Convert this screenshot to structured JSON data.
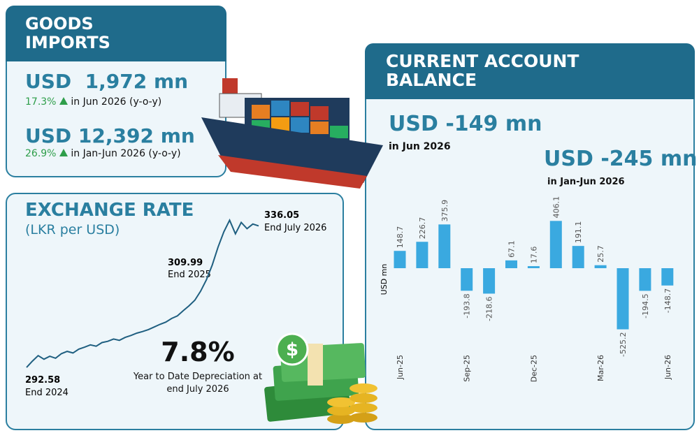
{
  "goods_imports": {
    "title": "GOODS IMPORTS",
    "monthly": {
      "amount": "USD  1,972 mn",
      "change": "17.3%",
      "period": "in Jun 2026 (y-o-y)"
    },
    "cumulative": {
      "amount": "USD 12,392 mn",
      "change": "26.9%",
      "period": "in Jan-Jun 2026 (y-o-y)"
    }
  },
  "exchange_rate": {
    "title": "EXCHANGE RATE",
    "subtitle": "(LKR per USD)",
    "depreciation": "7.8%",
    "depreciation_label": "Year to Date Depreciation at end July 2026"
  },
  "current_account": {
    "title": "CURRENT ACCOUNT BALANCE",
    "monthly": {
      "amount": "USD -149 mn",
      "period": "in Jun 2026"
    },
    "cumulative": {
      "amount": "USD -245 mn",
      "period": "in Jan-Jun 2026"
    }
  },
  "chart_data": [
    {
      "type": "line",
      "color": "#1f5f80",
      "values": [
        292.58,
        294.5,
        296.2,
        295.1,
        296.0,
        295.4,
        296.8,
        297.5,
        297.0,
        298.2,
        298.8,
        299.5,
        299.1,
        300.2,
        300.6,
        301.3,
        300.9,
        301.8,
        302.4,
        303.1,
        303.6,
        304.2,
        305.0,
        305.8,
        306.5,
        307.6,
        308.4,
        309.99,
        311.5,
        313.2,
        316.0,
        319.5,
        324.0,
        329.5,
        334.2,
        337.8,
        333.6,
        337.1,
        335.2,
        336.6,
        336.05
      ],
      "ylim": [
        290,
        340
      ],
      "annotations": [
        {
          "value": 292.58,
          "label": "End 2024"
        },
        {
          "value": 309.99,
          "label": "End 2025"
        },
        {
          "value": 336.05,
          "label": "End July 2026"
        }
      ]
    },
    {
      "type": "bar",
      "color": "#3aa9e0",
      "y_label": "USD mn",
      "categories": [
        "Jun-25",
        null,
        null,
        "Sep-25",
        null,
        null,
        "Dec-25",
        null,
        null,
        "Mar-26",
        null,
        null,
        "Jun-26"
      ],
      "values": [
        148.7,
        226.7,
        375.9,
        -193.8,
        -218.6,
        67.1,
        17.6,
        406.1,
        191.1,
        25.7,
        -525.2,
        -194.5,
        -148.7
      ],
      "ylim": [
        -600,
        600
      ]
    }
  ]
}
